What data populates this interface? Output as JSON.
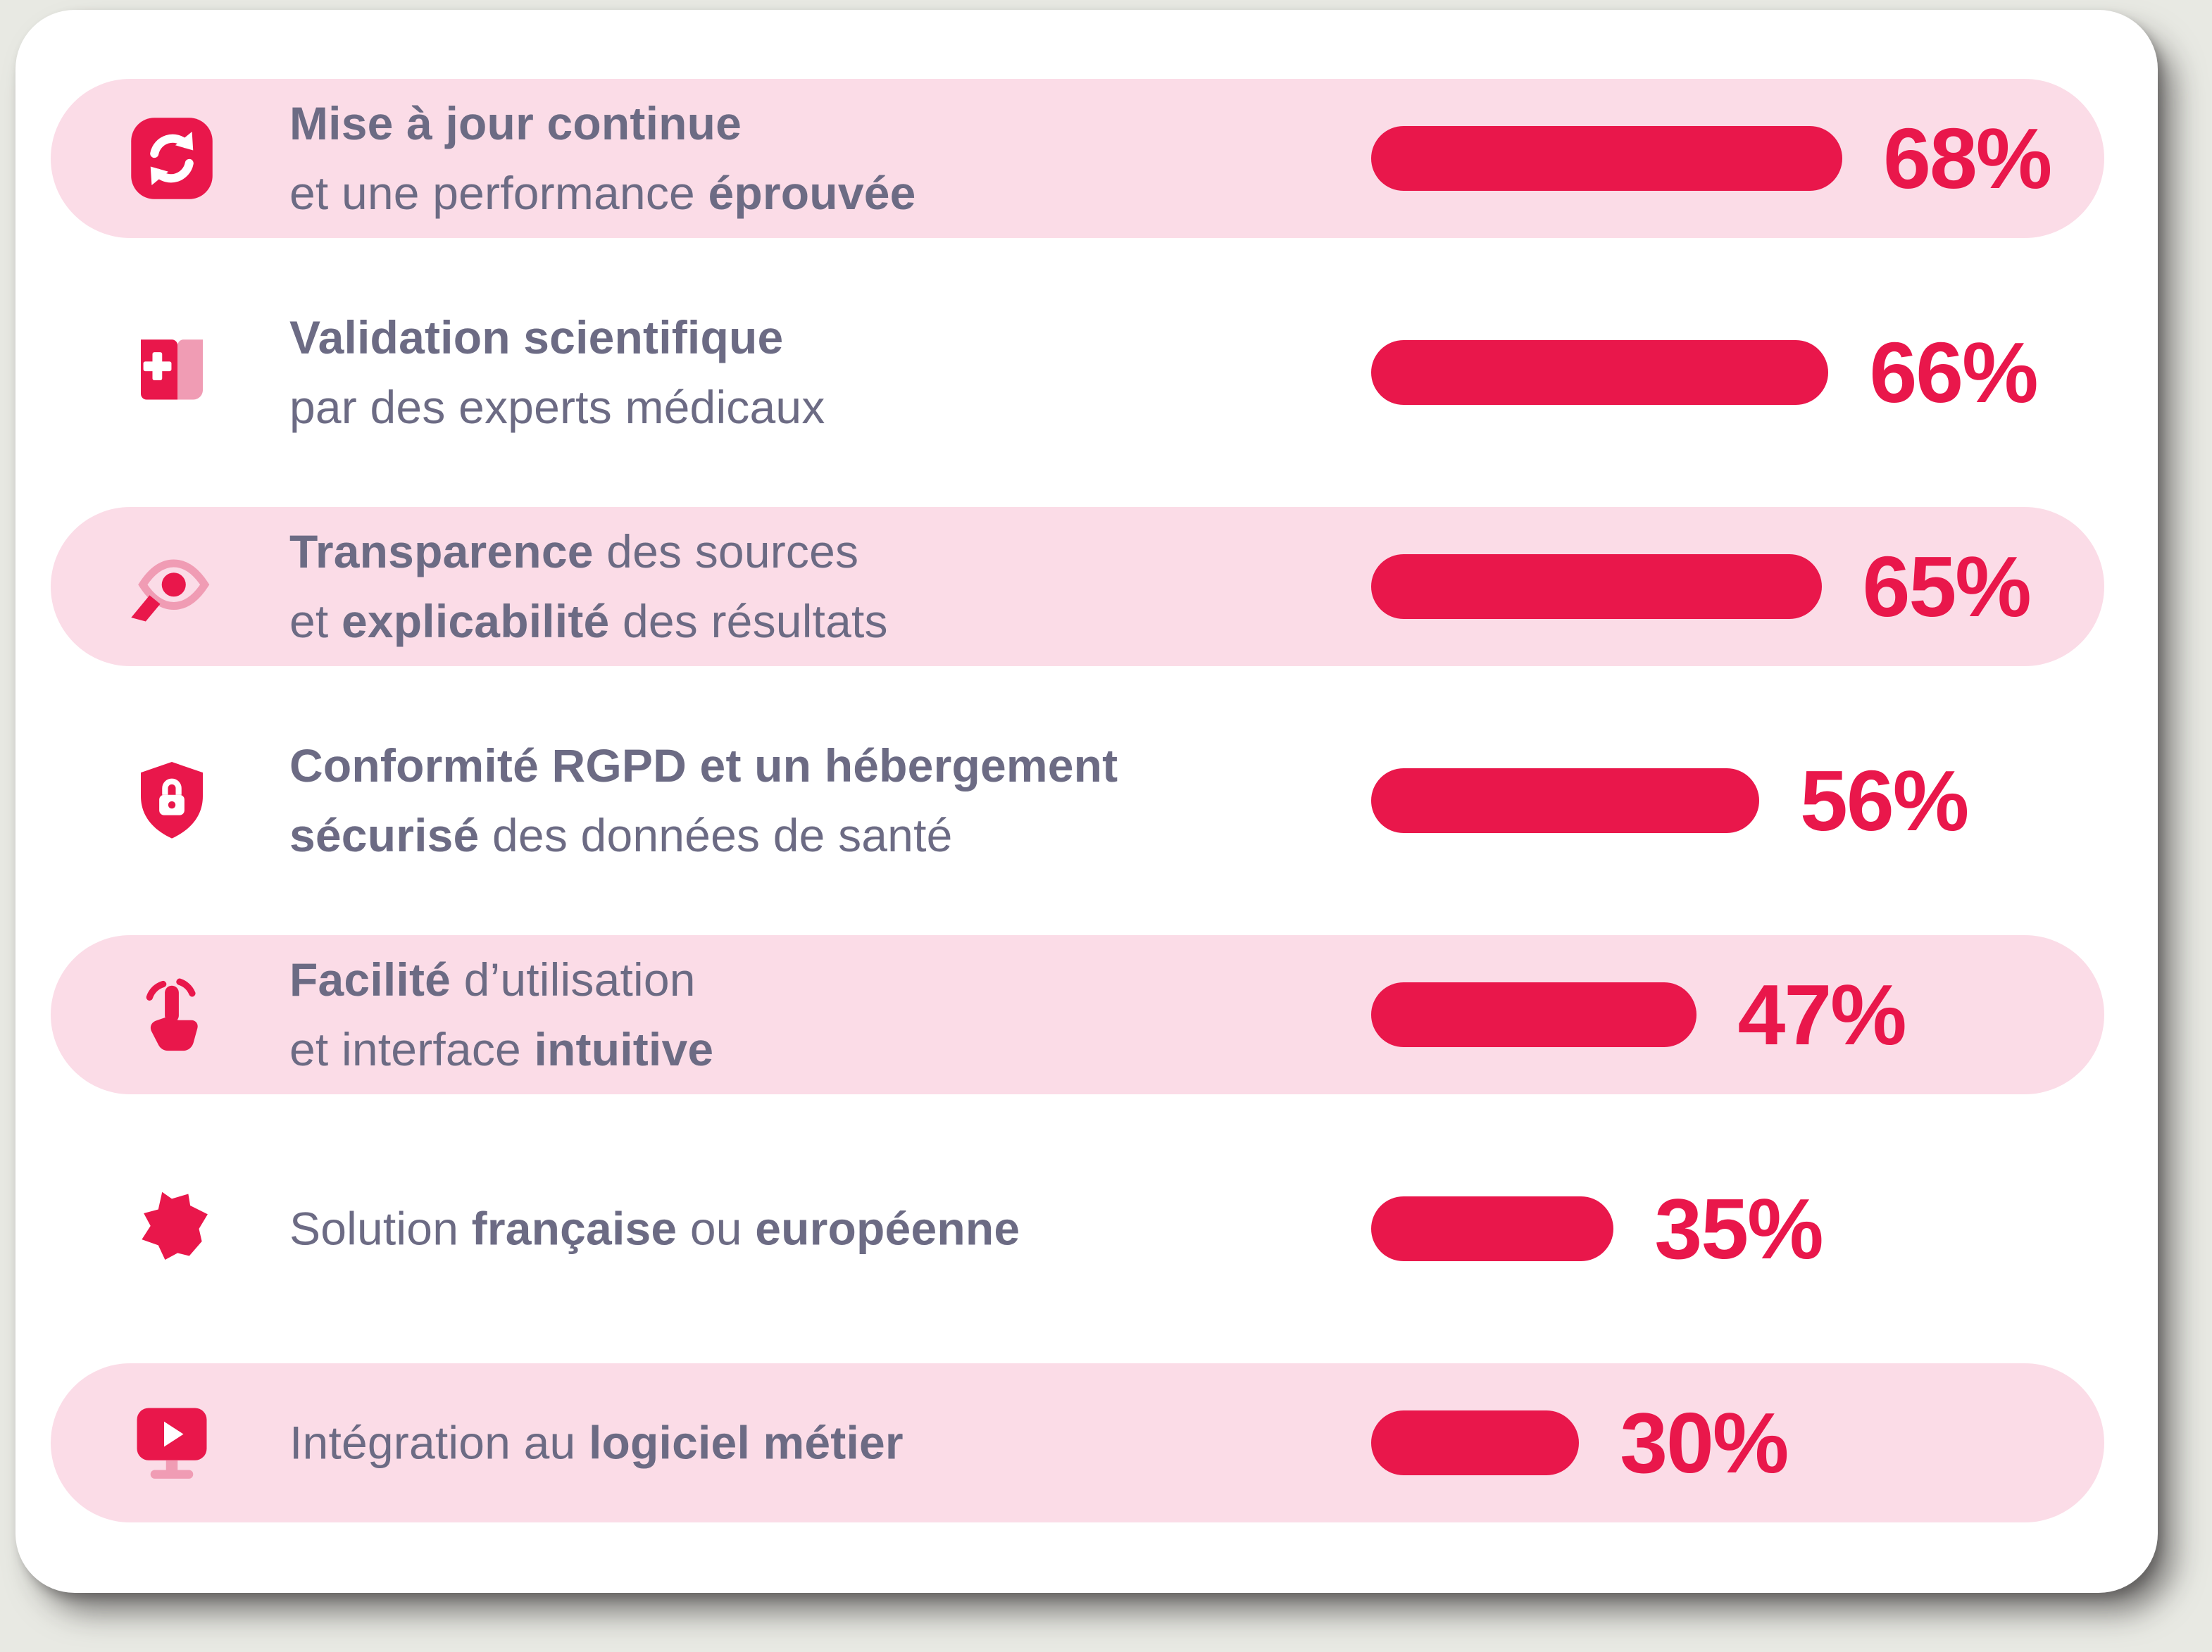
{
  "chart_data": {
    "type": "bar",
    "orientation": "horizontal",
    "title": "",
    "unit": "%",
    "xlim": [
      0,
      100
    ],
    "grid": false,
    "legend": false,
    "categories": [
      "Mise à jour continue et une performance éprouvée",
      "Validation scientifique par des experts médicaux",
      "Transparence des sources et explicabilité des résultats",
      "Conformité RGPD et un hébergement sécurisé des données de santé",
      "Facilité d’utilisation et interface intuitive",
      "Solution française ou européenne",
      "Intégration au logiciel métier"
    ],
    "values": [
      68,
      66,
      65,
      56,
      47,
      35,
      30
    ],
    "value_labels": [
      "68%",
      "66%",
      "65%",
      "56%",
      "47%",
      "35%",
      "30%"
    ]
  },
  "colors": {
    "accent": "#e9174b",
    "stripe": "#fbdce7",
    "card": "#ffffff",
    "canvas": "#e8e9e3",
    "text": "#6c6b84",
    "icon_soft": "#f09cb4"
  },
  "rows": [
    {
      "icon": "sync-icon",
      "striped": true,
      "value": 68,
      "value_label": "68%",
      "lines": [
        [
          {
            "t": "Mise à jour continue",
            "b": true
          }
        ],
        [
          {
            "t": "et une performance ",
            "b": false
          },
          {
            "t": "éprouvée",
            "b": true
          }
        ]
      ]
    },
    {
      "icon": "medical-book-icon",
      "striped": false,
      "value": 66,
      "value_label": "66%",
      "lines": [
        [
          {
            "t": "Validation scientifique",
            "b": true
          }
        ],
        [
          {
            "t": "par des experts médicaux",
            "b": false
          }
        ]
      ]
    },
    {
      "icon": "transparency-eye-icon",
      "striped": true,
      "value": 65,
      "value_label": "65%",
      "lines": [
        [
          {
            "t": "Transparence",
            "b": true
          },
          {
            "t": " des sources",
            "b": false
          }
        ],
        [
          {
            "t": "et ",
            "b": false
          },
          {
            "t": "explicabilité",
            "b": true
          },
          {
            "t": " des résultats",
            "b": false
          }
        ]
      ]
    },
    {
      "icon": "shield-lock-icon",
      "striped": false,
      "value": 56,
      "value_label": "56%",
      "lines": [
        [
          {
            "t": "Conformité RGPD et un hébergement",
            "b": true
          }
        ],
        [
          {
            "t": "sécurisé",
            "b": true
          },
          {
            "t": " des données de santé",
            "b": false
          }
        ]
      ]
    },
    {
      "icon": "touch-icon",
      "striped": true,
      "value": 47,
      "value_label": "47%",
      "lines": [
        [
          {
            "t": "Facilité",
            "b": true
          },
          {
            "t": " d’utilisation",
            "b": false
          }
        ],
        [
          {
            "t": "et interface ",
            "b": false
          },
          {
            "t": "intuitive",
            "b": true
          }
        ]
      ]
    },
    {
      "icon": "france-map-icon",
      "striped": false,
      "value": 35,
      "value_label": "35%",
      "lines": [
        [
          {
            "t": "Solution ",
            "b": false
          },
          {
            "t": "française",
            "b": true
          },
          {
            "t": " ou ",
            "b": false
          },
          {
            "t": "européenne",
            "b": true
          }
        ]
      ]
    },
    {
      "icon": "screen-play-icon",
      "striped": true,
      "value": 30,
      "value_label": "30%",
      "lines": [
        [
          {
            "t": "Intégration au ",
            "b": false
          },
          {
            "t": "logiciel métier",
            "b": true
          }
        ]
      ]
    }
  ]
}
